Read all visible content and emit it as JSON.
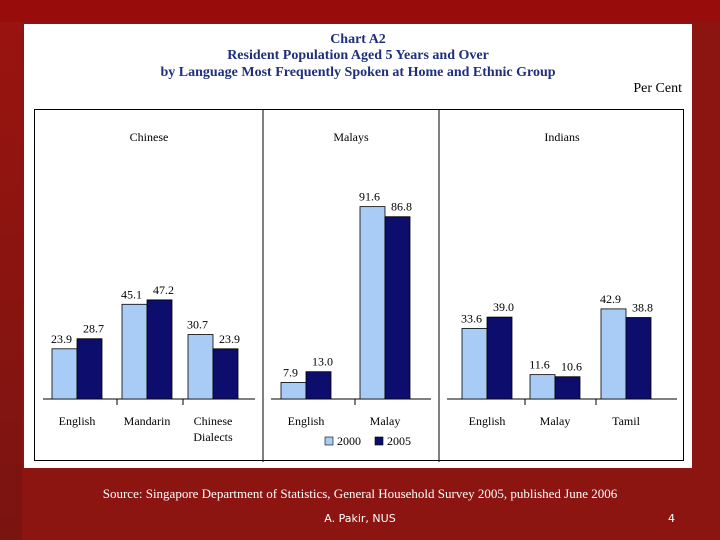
{
  "slide": {
    "chart_number": "Chart A2",
    "title_line1": "Resident Population Aged 5 Years and Over",
    "title_line2": "by Language Most Frequently Spoken at Home and Ethnic Group",
    "unit": "Per Cent",
    "source": "Source: Singapore Department of Statistics, General Household Survey 2005, published June 2006",
    "author": "A. Pakir, NUS",
    "page_number": "4"
  },
  "colors": {
    "series_2000": "#a9ccf7",
    "series_2005": "#0d0d6e",
    "background": "#8c1512"
  },
  "chart_data": {
    "type": "bar",
    "ylim": [
      0,
      100
    ],
    "legend": {
      "placement": "bottom",
      "entries": [
        "2000",
        "2005"
      ]
    },
    "series_names": [
      "2000",
      "2005"
    ],
    "panels": [
      {
        "group": "Chinese",
        "categories": [
          [
            "English"
          ],
          [
            "Mandarin"
          ],
          [
            "Chinese",
            "Dialects"
          ]
        ],
        "values_2000": [
          23.9,
          45.1,
          30.7
        ],
        "values_2005": [
          28.7,
          47.2,
          23.9
        ],
        "labels_2000": [
          "23.9",
          "45.1",
          "30.7"
        ],
        "labels_2005": [
          "28.7",
          "47.2",
          "23.9"
        ]
      },
      {
        "group": "Malays",
        "categories": [
          [
            "English"
          ],
          [
            "Malay"
          ]
        ],
        "values_2000": [
          7.9,
          91.6
        ],
        "values_2005": [
          13.0,
          86.8
        ],
        "labels_2000": [
          "7.9",
          "91.6"
        ],
        "labels_2005": [
          "13.0",
          "86.8"
        ]
      },
      {
        "group": "Indians",
        "categories": [
          [
            "English"
          ],
          [
            "Malay"
          ],
          [
            "Tamil"
          ]
        ],
        "values_2000": [
          33.6,
          11.6,
          42.9
        ],
        "values_2005": [
          39.0,
          10.6,
          38.8
        ],
        "labels_2000": [
          "33.6",
          "11.6",
          "42.9"
        ],
        "labels_2005": [
          "39.0",
          "10.6",
          "38.8"
        ]
      }
    ]
  }
}
